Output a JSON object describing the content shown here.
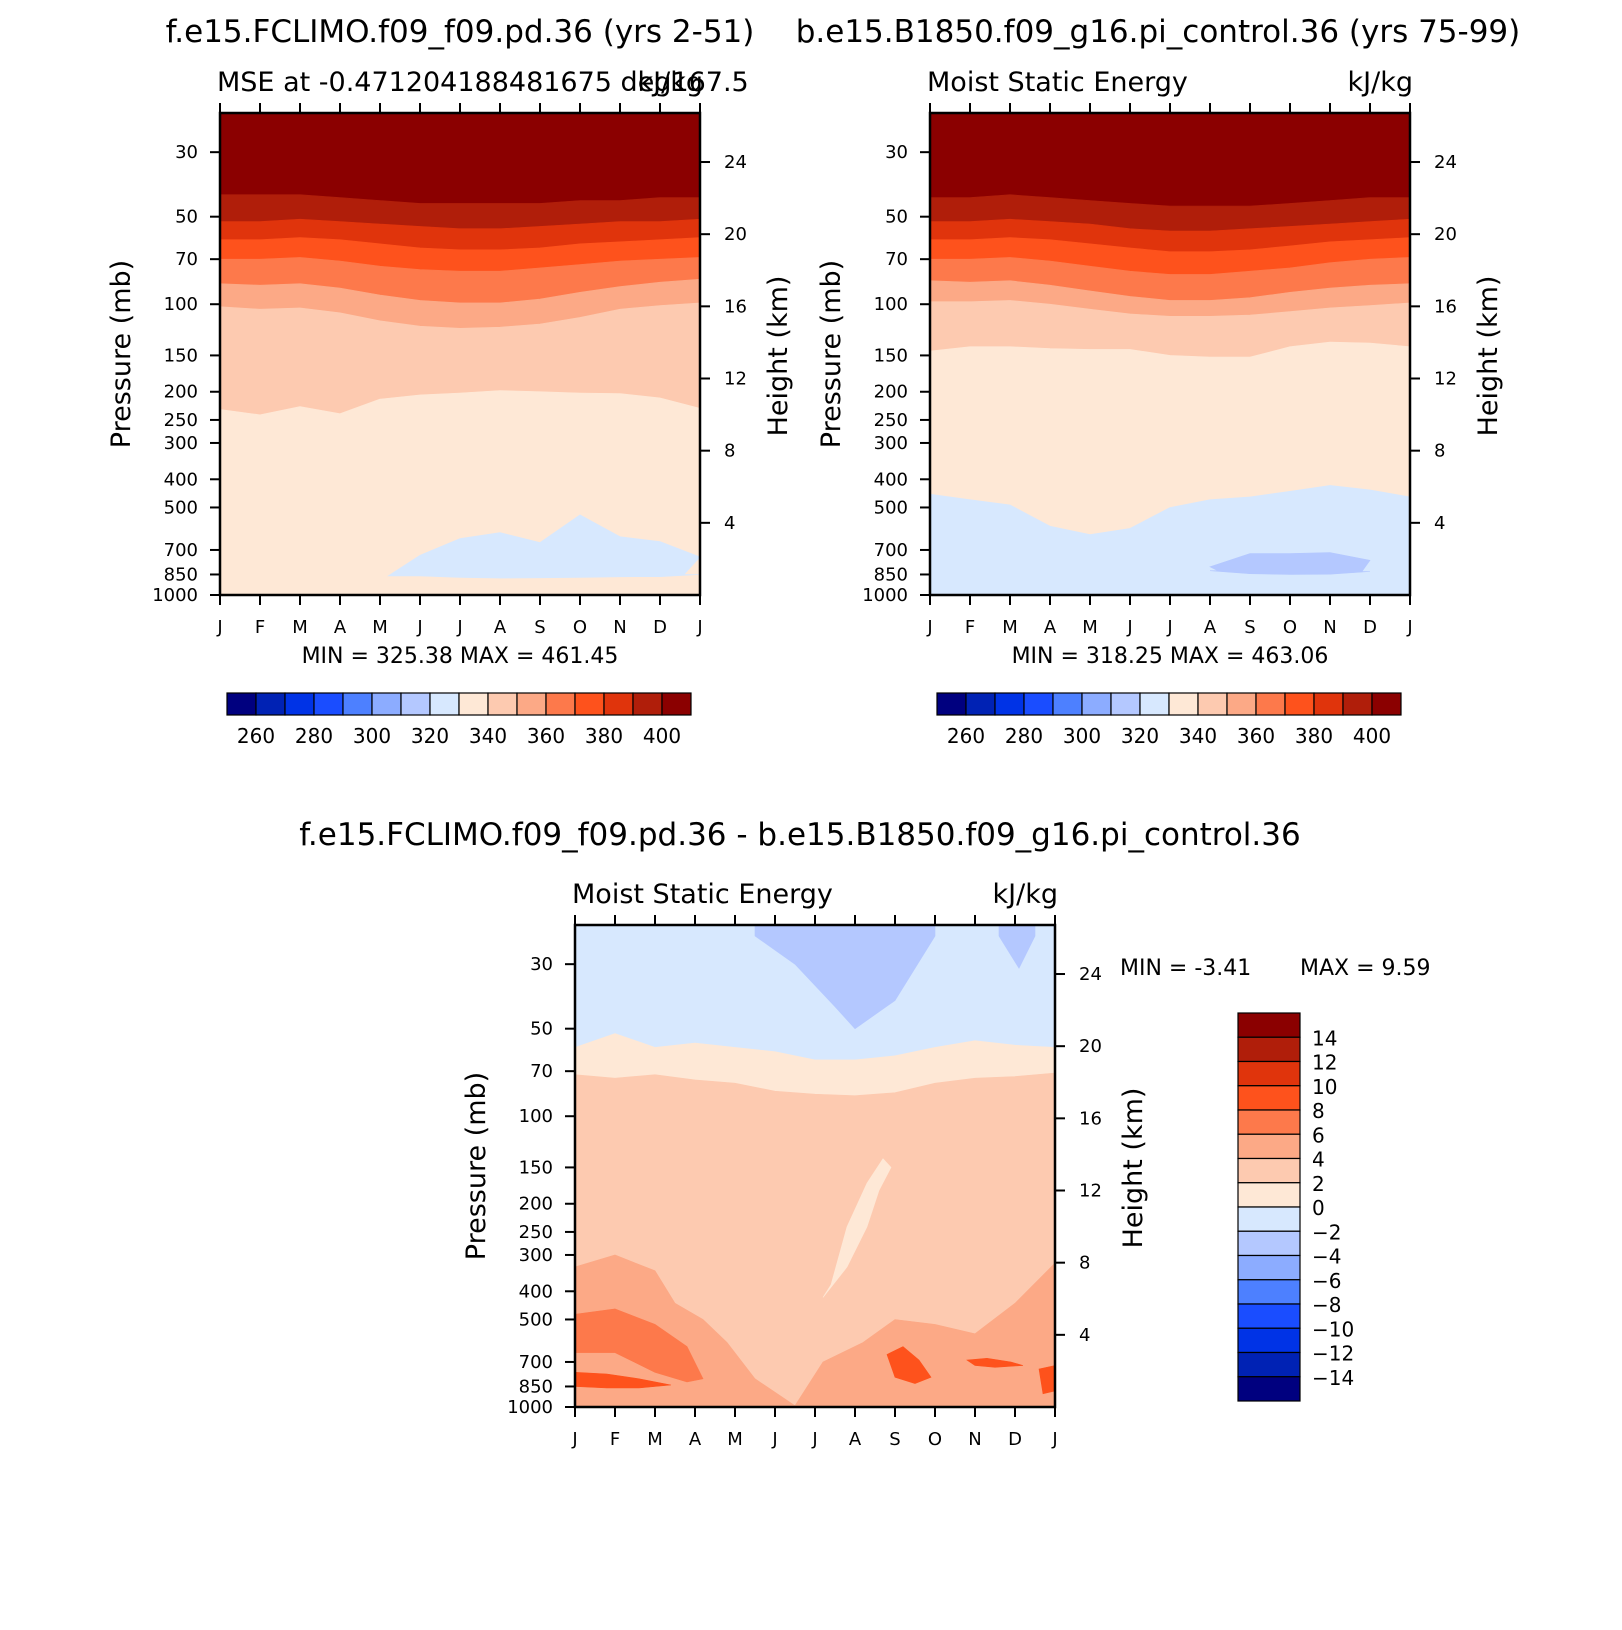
{
  "figure": {
    "top_left_title": "f.e15.FCLIMO.f09_f09.pd.36 (yrs 2-51)",
    "top_right_title": "b.e15.B1850.f09_g16.pi_control.36 (yrs 75-99)",
    "diff_title": "f.e15.FCLIMO.f09_f09.pd.36 - b.e15.B1850.f09_g16.pi_control.36"
  },
  "chart_data": [
    {
      "type": "heatmap",
      "panel": "top-left",
      "subtitle_left": "MSE at -0.471204188481675 deg167.5",
      "subtitle_right": "kJ/kg",
      "ylabel": "Pressure (mb)",
      "ylabel_right": "Height (km)",
      "xticks": [
        "J",
        "F",
        "M",
        "A",
        "M",
        "J",
        "J",
        "A",
        "S",
        "O",
        "N",
        "D",
        "J"
      ],
      "pressure_ticks": [
        30,
        50,
        70,
        100,
        150,
        200,
        250,
        300,
        400,
        500,
        700,
        850,
        1000
      ],
      "height_ticks": [
        4,
        8,
        12,
        16,
        20,
        24
      ],
      "stats": "MIN = 325.38  MAX = 461.45",
      "colorbar_labels": [
        "260",
        "280",
        "300",
        "320",
        "340",
        "360",
        "380",
        "400"
      ],
      "contour_levels": [
        400,
        390,
        380,
        370,
        360,
        350,
        340
      ],
      "boundaries_hpa": [
        [
          42,
          42,
          42,
          43,
          44,
          45,
          45,
          45,
          45,
          44,
          44,
          43,
          43
        ],
        [
          52,
          52,
          51,
          52,
          53,
          54,
          55,
          55,
          54,
          53,
          52,
          52,
          51
        ],
        [
          60,
          60,
          59,
          60,
          62,
          64,
          65,
          65,
          64,
          62,
          61,
          60,
          59
        ],
        [
          70,
          70,
          69,
          71,
          74,
          76,
          77,
          77,
          75,
          73,
          71,
          70,
          69
        ],
        [
          85,
          86,
          85,
          88,
          93,
          97,
          99,
          99,
          96,
          91,
          87,
          84,
          82
        ],
        [
          102,
          104,
          103,
          107,
          114,
          119,
          121,
          120,
          117,
          111,
          104,
          101,
          99
        ],
        [
          230,
          240,
          225,
          238,
          212,
          205,
          202,
          198,
          200,
          202,
          203,
          210,
          228
        ]
      ],
      "blob": {
        "level": 320,
        "upper_hpa": [
          null,
          null,
          null,
          null,
          null,
          730,
          640,
          610,
          660,
          530,
          630,
          655,
          740
        ],
        "lower_hpa": [
          null,
          null,
          null,
          null,
          null,
          860,
          870,
          875,
          873,
          870,
          866,
          865,
          850
        ],
        "start_month": 4.2,
        "end_month": 11.6
      },
      "bottom_level": 330,
      "bottom_hpa": 960
    },
    {
      "type": "heatmap",
      "panel": "top-right",
      "subtitle_left": "Moist Static Energy",
      "subtitle_right": "kJ/kg",
      "ylabel": "Pressure (mb)",
      "ylabel_right": "Height (km)",
      "xticks": [
        "J",
        "F",
        "M",
        "A",
        "M",
        "J",
        "J",
        "A",
        "S",
        "O",
        "N",
        "D",
        "J"
      ],
      "pressure_ticks": [
        30,
        50,
        70,
        100,
        150,
        200,
        250,
        300,
        400,
        500,
        700,
        850,
        1000
      ],
      "height_ticks": [
        4,
        8,
        12,
        16,
        20,
        24
      ],
      "stats": "MIN = 318.25  MAX = 463.06",
      "colorbar_labels": [
        "260",
        "280",
        "300",
        "320",
        "340",
        "360",
        "380",
        "400"
      ],
      "contour_levels": [
        400,
        390,
        380,
        370,
        360,
        350,
        340,
        330
      ],
      "boundaries_hpa": [
        [
          43,
          43,
          42,
          43,
          44,
          45,
          46,
          46,
          46,
          45,
          44,
          43,
          43
        ],
        [
          52,
          52,
          51,
          52,
          53,
          55,
          56,
          56,
          55,
          54,
          53,
          52,
          51
        ],
        [
          60,
          60,
          59,
          60,
          62,
          64,
          66,
          66,
          65,
          63,
          61,
          60,
          59
        ],
        [
          70,
          70,
          69,
          71,
          74,
          77,
          79,
          79,
          77,
          75,
          72,
          70,
          69
        ],
        [
          83,
          84,
          83,
          86,
          90,
          94,
          97,
          97,
          95,
          91,
          88,
          86,
          85
        ],
        [
          98,
          98,
          97,
          100,
          104,
          108,
          110,
          110,
          109,
          106,
          103,
          101,
          99
        ],
        [
          145,
          140,
          140,
          142,
          143,
          143,
          150,
          152,
          152,
          140,
          135,
          136,
          140
        ],
        [
          450,
          470,
          490,
          580,
          620,
          590,
          500,
          470,
          460,
          440,
          420,
          435,
          460
        ]
      ],
      "blob": {
        "level": 310,
        "upper_hpa": [
          null,
          null,
          null,
          null,
          null,
          null,
          null,
          800,
          720,
          720,
          715,
          760,
          null
        ],
        "lower_hpa": [
          null,
          null,
          null,
          null,
          null,
          null,
          null,
          825,
          845,
          850,
          848,
          830,
          null
        ],
        "start_month": 7.2,
        "end_month": 10.8
      },
      "bottom_level": 320,
      "bottom_hpa": 870
    },
    {
      "type": "heatmap",
      "panel": "difference",
      "subtitle_left": "Moist Static Energy",
      "subtitle_right": "kJ/kg",
      "ylabel": "Pressure (mb)",
      "ylabel_right": "Height (km)",
      "xticks": [
        "J",
        "F",
        "M",
        "A",
        "M",
        "J",
        "J",
        "A",
        "S",
        "O",
        "N",
        "D",
        "J"
      ],
      "pressure_ticks": [
        30,
        50,
        70,
        100,
        150,
        200,
        250,
        300,
        400,
        500,
        700,
        850,
        1000
      ],
      "height_ticks": [
        4,
        8,
        12,
        16,
        20,
        24
      ],
      "stats_min": "MIN =   -3.41",
      "stats_max": "MAX =     9.59",
      "colorbar_labels": [
        "14",
        "12",
        "10",
        "8",
        "6",
        "4",
        "2",
        "0",
        "-2",
        "-4",
        "-6",
        "-8",
        "-10",
        "-12",
        "-14"
      ],
      "top_level": -1,
      "contour_levels": [
        1,
        3
      ],
      "boundaries_hpa": [
        [
          58,
          52,
          58,
          56,
          58,
          60,
          64,
          64,
          62,
          58,
          55,
          57,
          58
        ],
        [
          72,
          74,
          72,
          75,
          77,
          82,
          84,
          85,
          83,
          77,
          74,
          73,
          71
        ]
      ],
      "low_lobe": {
        "level": -3,
        "top_hpa": 24,
        "months": [
          4.5,
          5.5,
          6.5,
          7.0,
          8.0,
          9.0
        ],
        "pressure": [
          24,
          30,
          42,
          50,
          40,
          24
        ]
      },
      "low_lobe_2": {
        "level": -3,
        "months": [
          10.6,
          11.1,
          11.5
        ],
        "pressure": [
          24,
          31,
          24
        ]
      },
      "center_tongue": {
        "level": 1,
        "months": [
          6.8,
          7.3,
          7.6,
          7.9,
          7.7,
          7.3,
          6.8,
          6.4,
          6.2
        ],
        "pressure": [
          330,
          240,
          180,
          150,
          140,
          170,
          240,
          380,
          420
        ]
      },
      "lower_band": {
        "level": 5,
        "months": [
          0,
          1.0,
          2.0,
          2.5,
          3.2,
          3.8,
          4.5,
          5.5,
          6.2,
          7.2,
          8.0,
          9.0,
          10.0,
          11.0,
          12.0
        ],
        "top_hpa": [
          330,
          300,
          340,
          440,
          500,
          600,
          800,
          990,
          700,
          600,
          500,
          520,
          560,
          440,
          320
        ]
      },
      "inner_band": {
        "level": 7,
        "months": [
          0,
          1.0,
          2.0,
          2.8,
          3.2,
          2.8,
          2.0,
          1.0,
          0
        ],
        "top_hpa": [
          480,
          460,
          520,
          620,
          800,
          820,
          760,
          650,
          650
        ]
      },
      "hot_spots": [
        {
          "level": 9,
          "months": [
            0,
            0.8,
            1.6,
            2.4,
            1.6,
            0.8,
            0
          ],
          "pressure": [
            760,
            770,
            800,
            840,
            860,
            860,
            850
          ]
        },
        {
          "level": 9,
          "months": [
            7.8,
            8.2,
            8.6,
            8.9,
            8.5,
            8.0
          ],
          "pressure": [
            660,
            620,
            690,
            790,
            830,
            790
          ]
        },
        {
          "level": 9,
          "months": [
            9.8,
            10.3,
            10.9,
            11.2,
            10.5,
            10.0
          ],
          "pressure": [
            690,
            680,
            700,
            720,
            730,
            720
          ]
        },
        {
          "level": 9,
          "months": [
            11.6,
            12.0,
            12.0,
            11.7
          ],
          "pressure": [
            740,
            720,
            880,
            900
          ]
        }
      ]
    }
  ],
  "colors": {
    "palette": [
      "#00007f",
      "#0022b4",
      "#0033e6",
      "#1a4dff",
      "#4d80ff",
      "#8cacff",
      "#b4c8ff",
      "#d7e8fe",
      "#fee8d6",
      "#fdcab0",
      "#fca986",
      "#fd794b",
      "#fe521c",
      "#e0340c",
      "#b01e0a",
      "#8b0000"
    ],
    "text": "#000000",
    "axis": "#000000"
  }
}
